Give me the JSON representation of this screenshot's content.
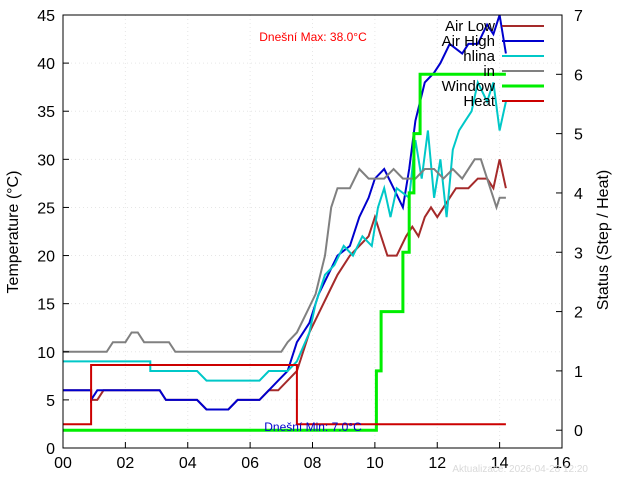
{
  "chart_data": {
    "type": "line",
    "x_ticks": [
      "00",
      "02",
      "04",
      "06",
      "08",
      "10",
      "12",
      "14",
      "16"
    ],
    "xlim": [
      0,
      16
    ],
    "y_ticks": [
      "0",
      "5",
      "10",
      "15",
      "20",
      "25",
      "30",
      "35",
      "40",
      "45"
    ],
    "ylim": [
      0,
      45
    ],
    "ylabel": "Temperature (°C)",
    "y2_ticks": [
      "0",
      "1",
      "2",
      "3",
      "4",
      "5",
      "6",
      "7"
    ],
    "y2lim": [
      -0.3,
      7
    ],
    "y2label": "Status (Step / Heat)",
    "grid": true,
    "legend_position": "top-right",
    "annotations": {
      "max": "Dnešní Max: 38.0°C",
      "min": "Dnešní Min: 7.0°C"
    },
    "footer": "Aktualizace: 2026-04-28 12:20",
    "series": [
      {
        "name": "Air Low",
        "color": "#a52a2a",
        "axis": "left",
        "points": [
          [
            0,
            6
          ],
          [
            0.9,
            6
          ],
          [
            0.9,
            5
          ],
          [
            1.1,
            5
          ],
          [
            1.3,
            6
          ],
          [
            3.1,
            6
          ],
          [
            3.3,
            5
          ],
          [
            4.3,
            5
          ],
          [
            4.6,
            4
          ],
          [
            5.3,
            4
          ],
          [
            5.6,
            5
          ],
          [
            6.3,
            5
          ],
          [
            6.6,
            6
          ],
          [
            6.9,
            6
          ],
          [
            7.2,
            7
          ],
          [
            7.5,
            8
          ],
          [
            7.9,
            12
          ],
          [
            8.2,
            14
          ],
          [
            8.5,
            16
          ],
          [
            8.8,
            18
          ],
          [
            9.2,
            20
          ],
          [
            9.5,
            21
          ],
          [
            9.8,
            22
          ],
          [
            10.0,
            24
          ],
          [
            10.2,
            22
          ],
          [
            10.4,
            20
          ],
          [
            10.7,
            20
          ],
          [
            11.0,
            22
          ],
          [
            11.2,
            23
          ],
          [
            11.4,
            22
          ],
          [
            11.6,
            24
          ],
          [
            11.8,
            25
          ],
          [
            12.0,
            24
          ],
          [
            12.2,
            25
          ],
          [
            12.4,
            26
          ],
          [
            12.6,
            27
          ],
          [
            13.0,
            27
          ],
          [
            13.3,
            28
          ],
          [
            13.6,
            28
          ],
          [
            13.8,
            27
          ],
          [
            14.0,
            30
          ],
          [
            14.2,
            27
          ]
        ]
      },
      {
        "name": "Air High",
        "color": "#0000cd",
        "axis": "left",
        "points": [
          [
            0,
            6
          ],
          [
            0.9,
            6
          ],
          [
            0.9,
            5
          ],
          [
            1.1,
            6
          ],
          [
            3.1,
            6
          ],
          [
            3.3,
            5
          ],
          [
            4.3,
            5
          ],
          [
            4.6,
            4
          ],
          [
            5.3,
            4
          ],
          [
            5.6,
            5
          ],
          [
            6.3,
            5
          ],
          [
            6.6,
            6
          ],
          [
            6.9,
            7
          ],
          [
            7.2,
            8
          ],
          [
            7.5,
            11
          ],
          [
            7.9,
            13
          ],
          [
            8.2,
            16
          ],
          [
            8.5,
            18
          ],
          [
            8.8,
            20
          ],
          [
            9.2,
            21
          ],
          [
            9.5,
            24
          ],
          [
            9.8,
            26
          ],
          [
            10.0,
            28
          ],
          [
            10.3,
            29
          ],
          [
            10.6,
            27
          ],
          [
            10.9,
            25
          ],
          [
            11.1,
            29
          ],
          [
            11.3,
            34
          ],
          [
            11.6,
            38
          ],
          [
            11.9,
            39
          ],
          [
            12.1,
            40
          ],
          [
            12.4,
            42
          ],
          [
            12.8,
            41
          ],
          [
            13.0,
            42
          ],
          [
            13.3,
            42
          ],
          [
            13.6,
            44
          ],
          [
            13.8,
            43
          ],
          [
            14.0,
            45
          ],
          [
            14.2,
            41
          ]
        ]
      },
      {
        "name": "hlina",
        "color": "#00c8c8",
        "axis": "left",
        "points": [
          [
            0,
            9
          ],
          [
            2.8,
            9
          ],
          [
            2.8,
            8
          ],
          [
            4.3,
            8
          ],
          [
            4.6,
            7
          ],
          [
            6.3,
            7
          ],
          [
            6.6,
            8
          ],
          [
            7.2,
            8
          ],
          [
            7.5,
            9
          ],
          [
            7.9,
            12
          ],
          [
            8.1,
            15
          ],
          [
            8.4,
            18
          ],
          [
            8.7,
            19
          ],
          [
            9.0,
            21
          ],
          [
            9.3,
            20
          ],
          [
            9.6,
            22
          ],
          [
            9.9,
            21
          ],
          [
            10.1,
            25
          ],
          [
            10.3,
            27
          ],
          [
            10.5,
            24
          ],
          [
            10.7,
            27
          ],
          [
            11.1,
            26
          ],
          [
            11.3,
            32
          ],
          [
            11.5,
            28
          ],
          [
            11.7,
            33
          ],
          [
            11.9,
            26
          ],
          [
            12.1,
            30
          ],
          [
            12.3,
            24
          ],
          [
            12.5,
            31
          ],
          [
            12.7,
            33
          ],
          [
            12.9,
            34
          ],
          [
            13.1,
            35
          ],
          [
            13.3,
            38
          ],
          [
            13.6,
            36
          ],
          [
            13.8,
            38
          ],
          [
            14.0,
            33
          ],
          [
            14.2,
            36
          ]
        ]
      },
      {
        "name": "in",
        "color": "#808080",
        "axis": "left",
        "points": [
          [
            0,
            10
          ],
          [
            1.4,
            10
          ],
          [
            1.6,
            11
          ],
          [
            2.0,
            11
          ],
          [
            2.2,
            12
          ],
          [
            2.4,
            12
          ],
          [
            2.6,
            11
          ],
          [
            3.4,
            11
          ],
          [
            3.6,
            10
          ],
          [
            7.0,
            10
          ],
          [
            7.2,
            11
          ],
          [
            7.5,
            12
          ],
          [
            7.8,
            14
          ],
          [
            8.1,
            16
          ],
          [
            8.4,
            20
          ],
          [
            8.6,
            25
          ],
          [
            8.8,
            27
          ],
          [
            9.2,
            27
          ],
          [
            9.5,
            29
          ],
          [
            9.8,
            28
          ],
          [
            10.3,
            28
          ],
          [
            10.6,
            29
          ],
          [
            10.9,
            28
          ],
          [
            11.3,
            28
          ],
          [
            11.6,
            29
          ],
          [
            11.9,
            29
          ],
          [
            12.2,
            28
          ],
          [
            12.5,
            29
          ],
          [
            12.8,
            28
          ],
          [
            13.2,
            30
          ],
          [
            13.4,
            30
          ],
          [
            13.6,
            28
          ],
          [
            13.9,
            25
          ],
          [
            14.0,
            26
          ],
          [
            14.2,
            26
          ]
        ]
      },
      {
        "name": "Window",
        "color": "#00ee00",
        "axis": "right",
        "points": [
          [
            0,
            0
          ],
          [
            10.05,
            0
          ],
          [
            10.05,
            1
          ],
          [
            10.2,
            1
          ],
          [
            10.2,
            2
          ],
          [
            10.9,
            2
          ],
          [
            10.9,
            3
          ],
          [
            11.1,
            3
          ],
          [
            11.1,
            4
          ],
          [
            11.25,
            4
          ],
          [
            11.25,
            5
          ],
          [
            11.45,
            5
          ],
          [
            11.45,
            6
          ],
          [
            14.2,
            6
          ]
        ]
      },
      {
        "name": "Heat",
        "color": "#cc0000",
        "axis": "right",
        "points": [
          [
            0,
            0.1
          ],
          [
            0.9,
            0.1
          ],
          [
            0.9,
            1.1
          ],
          [
            7.5,
            1.1
          ],
          [
            7.5,
            0.1
          ],
          [
            14.2,
            0.1
          ]
        ]
      }
    ]
  }
}
